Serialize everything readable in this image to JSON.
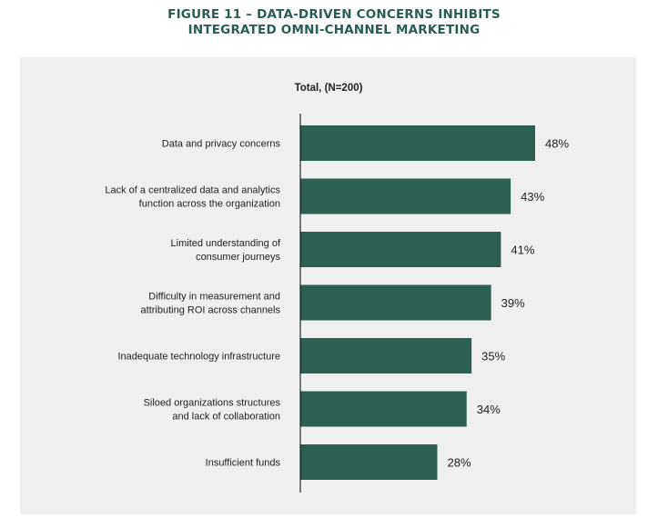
{
  "figure": {
    "title_line1": "FIGURE 11 – DATA-DRIVEN CONCERNS INHIBITS",
    "title_line2": "INTEGRATED OMNI-CHANNEL MARKETING"
  },
  "chart_data": {
    "type": "bar",
    "orientation": "horizontal",
    "title": "Total, (N=200)",
    "categories": [
      [
        "Data and privacy concerns"
      ],
      [
        "Lack of a centralized data and analytics",
        "function across the organization"
      ],
      [
        "Limited understanding of",
        "consumer journeys"
      ],
      [
        "Difficulty in measurement and",
        "attributing ROI across channels"
      ],
      [
        "Inadequate technology infrastructure"
      ],
      [
        "Siloed organizations structures",
        "and lack of collaboration"
      ],
      [
        "Insufficient funds"
      ]
    ],
    "values": [
      48,
      43,
      41,
      39,
      35,
      34,
      28
    ],
    "value_suffix": "%",
    "xlim": [
      0,
      55
    ],
    "grid": false,
    "legend": "none",
    "colors": {
      "bar": "#2d5e53",
      "text": "#222222",
      "axis": "#000000"
    }
  }
}
